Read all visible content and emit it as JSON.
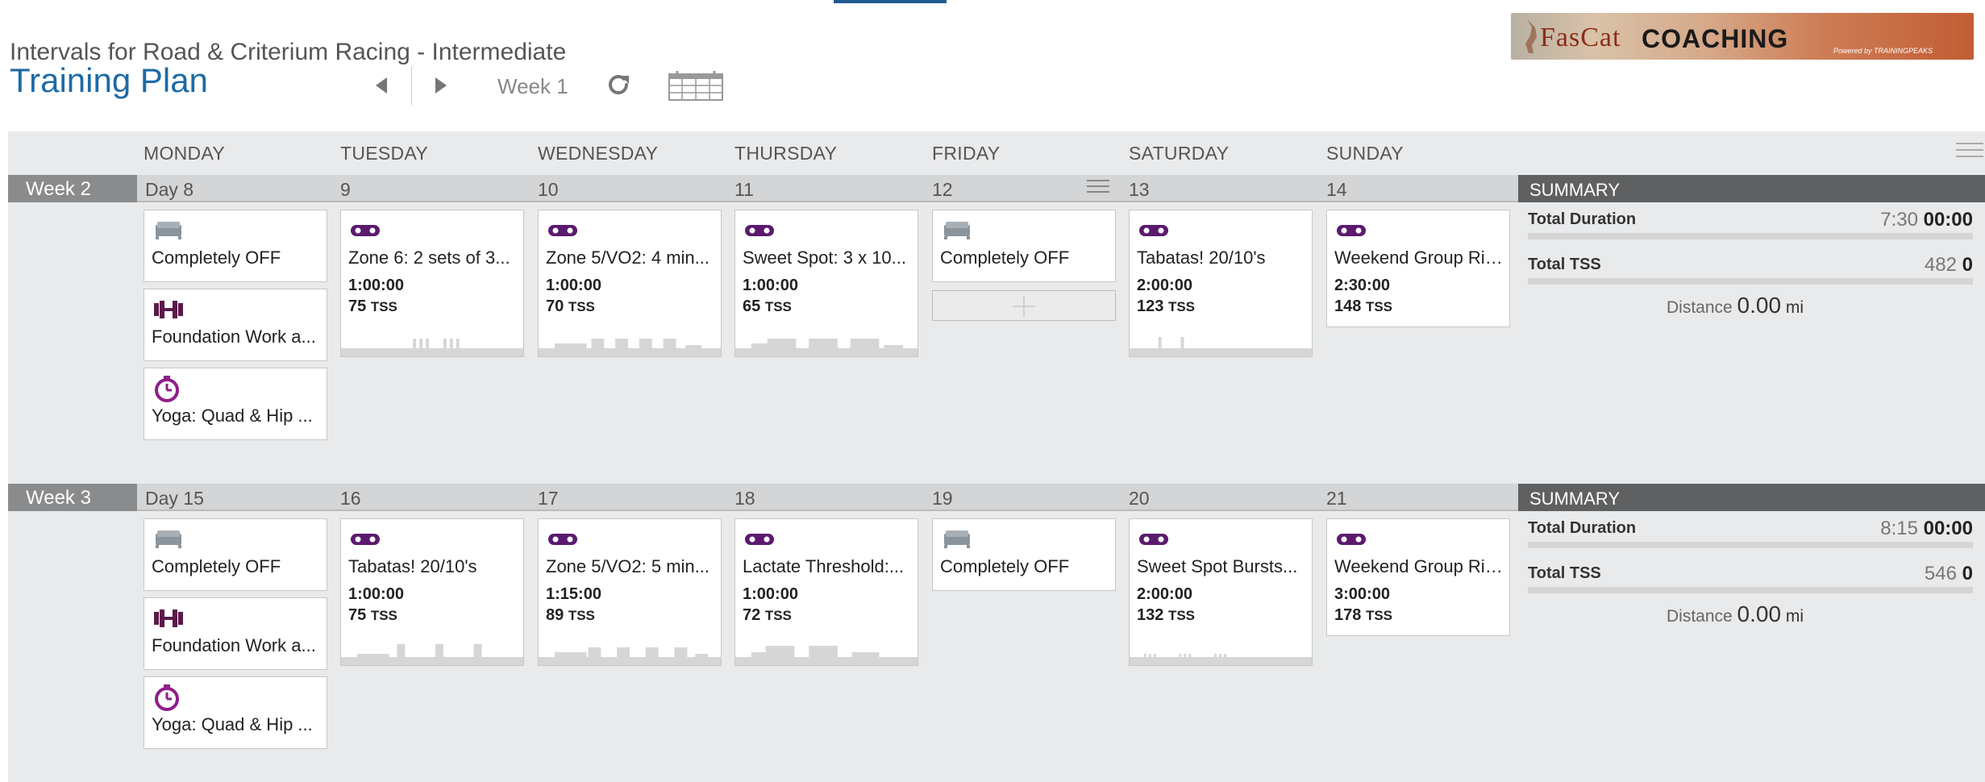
{
  "header": {
    "plan_subtitle": "Intervals for Road & Criterium Racing - Intermediate",
    "plan_title": "Training Plan",
    "week_label": "Week 1",
    "accent_color": "#1f6aa5"
  },
  "logo": {
    "brand": "FasCat",
    "coaching": "COACHING",
    "powered_by": "Powered by TRAININGPEAKS"
  },
  "days": [
    "MONDAY",
    "TUESDAY",
    "WEDNESDAY",
    "THURSDAY",
    "FRIDAY",
    "SATURDAY",
    "SUNDAY"
  ],
  "weeks": [
    {
      "label": "Week 2",
      "day_numbers": [
        "Day 8",
        "9",
        "10",
        "11",
        "12",
        "13",
        "14"
      ],
      "summary": {
        "header": "SUMMARY",
        "duration_label": "Total Duration",
        "duration_planned": "7:30",
        "duration_actual": "00:00",
        "tss_label": "Total TSS",
        "tss_planned": "482",
        "tss_actual": "0",
        "distance_label": "Distance",
        "distance_value": "0.00",
        "distance_unit": "mi"
      },
      "cards": {
        "mon": [
          {
            "icon": "rest-icon",
            "title": "Completely OFF"
          },
          {
            "icon": "strength-icon",
            "title": "Foundation Work a..."
          },
          {
            "icon": "stopwatch-icon",
            "title": "Yoga: Quad & Hip ..."
          }
        ],
        "tue": {
          "icon": "bike-icon",
          "title": "Zone 6: 2 sets of 3...",
          "duration": "1:00:00",
          "tss": "75",
          "tss_unit": "TSS"
        },
        "wed": {
          "icon": "bike-icon",
          "title": "Zone 5/VO2: 4 min...",
          "duration": "1:00:00",
          "tss": "70",
          "tss_unit": "TSS"
        },
        "thu": {
          "icon": "bike-icon",
          "title": "Sweet Spot: 3 x 10...",
          "duration": "1:00:00",
          "tss": "65",
          "tss_unit": "TSS"
        },
        "fri": {
          "icon": "rest-icon",
          "title": "Completely OFF"
        },
        "sat": {
          "icon": "bike-icon",
          "title": "Tabatas! 20/10's",
          "duration": "2:00:00",
          "tss": "123",
          "tss_unit": "TSS"
        },
        "sun": {
          "icon": "bike-icon",
          "title": "Weekend Group Ride",
          "duration": "2:30:00",
          "tss": "148",
          "tss_unit": "TSS"
        }
      }
    },
    {
      "label": "Week 3",
      "day_numbers": [
        "Day 15",
        "16",
        "17",
        "18",
        "19",
        "20",
        "21"
      ],
      "summary": {
        "header": "SUMMARY",
        "duration_label": "Total Duration",
        "duration_planned": "8:15",
        "duration_actual": "00:00",
        "tss_label": "Total TSS",
        "tss_planned": "546",
        "tss_actual": "0",
        "distance_label": "Distance",
        "distance_value": "0.00",
        "distance_unit": "mi"
      },
      "cards": {
        "mon": [
          {
            "icon": "rest-icon",
            "title": "Completely OFF"
          },
          {
            "icon": "strength-icon",
            "title": "Foundation Work a..."
          },
          {
            "icon": "stopwatch-icon",
            "title": "Yoga: Quad & Hip ..."
          }
        ],
        "tue": {
          "icon": "bike-icon",
          "title": "Tabatas! 20/10's",
          "duration": "1:00:00",
          "tss": "75",
          "tss_unit": "TSS"
        },
        "wed": {
          "icon": "bike-icon",
          "title": "Zone 5/VO2: 5 min...",
          "duration": "1:15:00",
          "tss": "89",
          "tss_unit": "TSS"
        },
        "thu": {
          "icon": "bike-icon",
          "title": "Lactate Threshold:...",
          "duration": "1:00:00",
          "tss": "72",
          "tss_unit": "TSS"
        },
        "fri": {
          "icon": "rest-icon",
          "title": "Completely OFF"
        },
        "sat": {
          "icon": "bike-icon",
          "title": "Sweet Spot Bursts...",
          "duration": "2:00:00",
          "tss": "132",
          "tss_unit": "TSS"
        },
        "sun": {
          "icon": "bike-icon",
          "title": "Weekend Group Ride",
          "duration": "3:00:00",
          "tss": "178",
          "tss_unit": "TSS"
        }
      }
    }
  ]
}
